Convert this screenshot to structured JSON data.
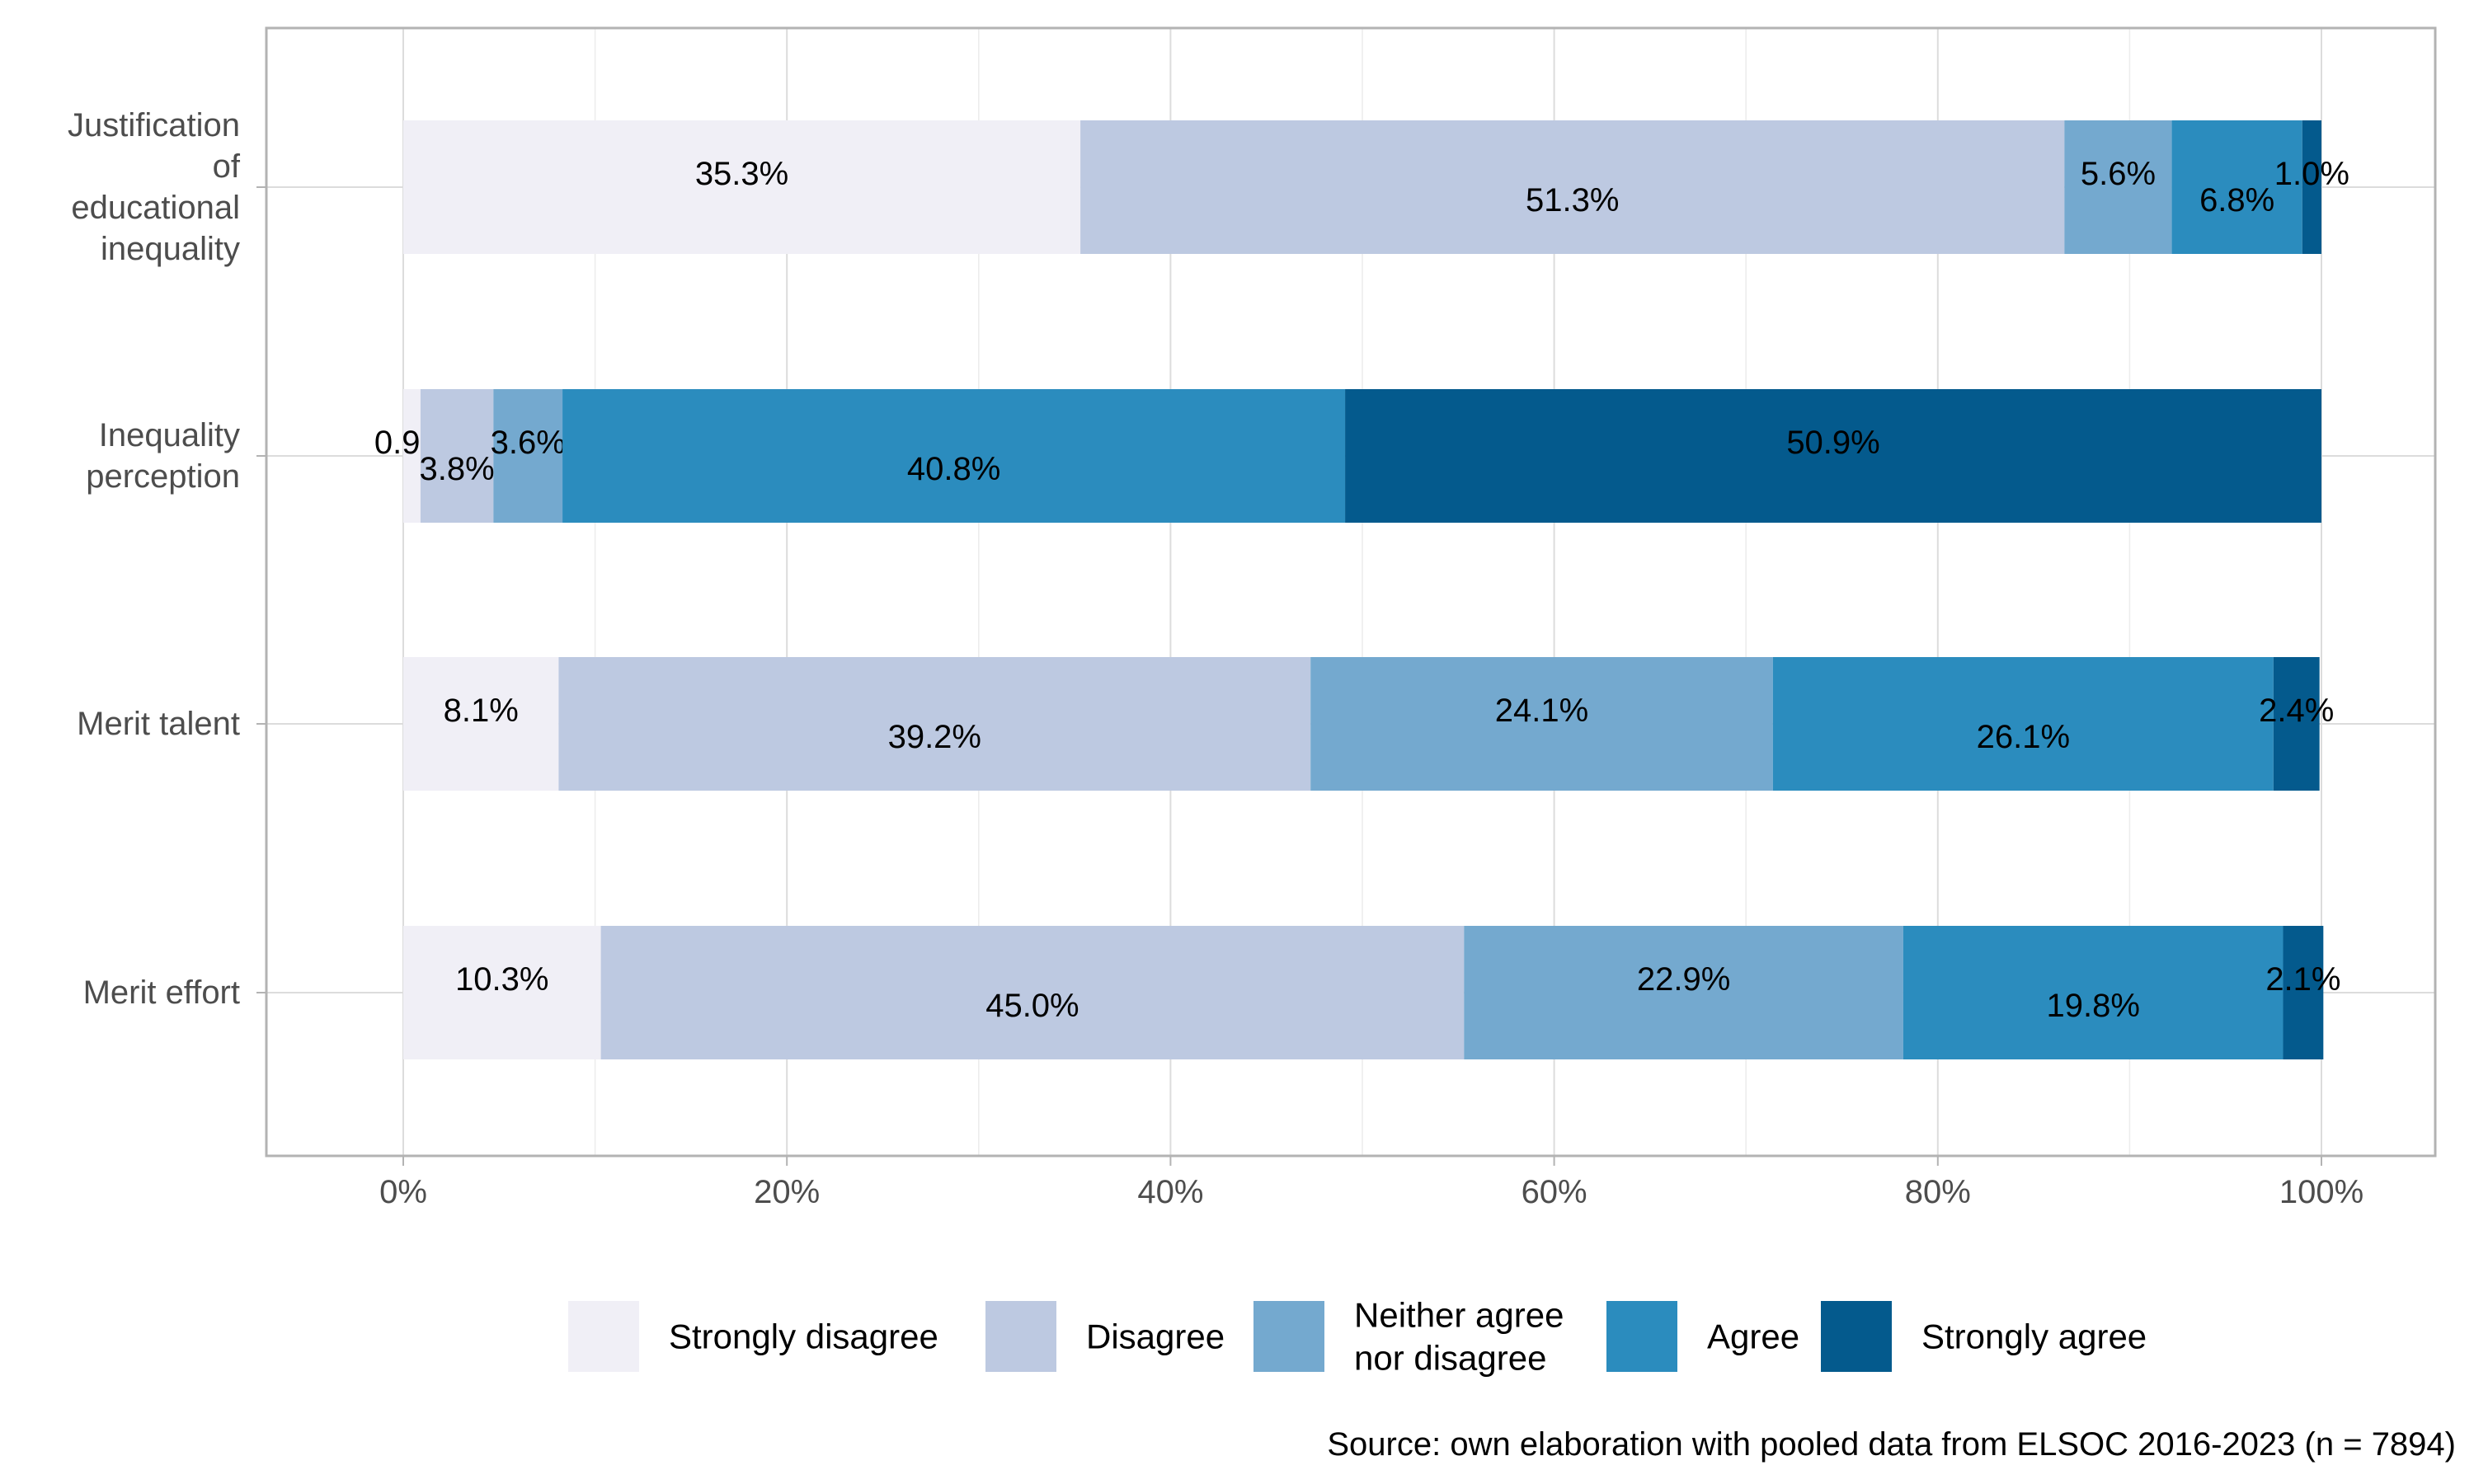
{
  "chart_data": {
    "type": "bar",
    "orientation": "horizontal",
    "stacked": true,
    "categories": [
      "Justification of educational inequality",
      "Inequality perception",
      "Merit talent",
      "Merit effort"
    ],
    "category_label_lines": [
      [
        "Justification",
        "of",
        "educational",
        "inequality"
      ],
      [
        "Inequality",
        "perception"
      ],
      [
        "Merit talent"
      ],
      [
        "Merit effort"
      ]
    ],
    "series": [
      {
        "name": "Strongly disagree",
        "color": "#f0eff6",
        "values": [
          35.3,
          0.9,
          8.1,
          10.3
        ]
      },
      {
        "name": "Disagree",
        "color": "#bdc9e1",
        "values": [
          51.3,
          3.8,
          39.2,
          45.0
        ]
      },
      {
        "name": "Neither agree nor disagree",
        "legend_lines": [
          "Neither agree",
          "nor disagree"
        ],
        "color": "#74a9cf",
        "values": [
          5.6,
          3.6,
          24.1,
          22.9
        ]
      },
      {
        "name": "Agree",
        "color": "#2b8cbe",
        "values": [
          6.8,
          40.8,
          26.1,
          19.8
        ]
      },
      {
        "name": "Strongly agree",
        "color": "#045a8d",
        "values": [
          1.0,
          50.9,
          2.4,
          2.1
        ]
      }
    ],
    "xlim": [
      0,
      100
    ],
    "x_ticks": [
      "0%",
      "20%",
      "40%",
      "60%",
      "80%",
      "100%"
    ],
    "x_tick_values": [
      0,
      20,
      40,
      60,
      80,
      100
    ],
    "grid": true,
    "legend_position": "bottom",
    "caption": "Source: own elaboration with pooled data from ELSOC 2016-2023 (n = 7894)",
    "xlabel": "",
    "ylabel": ""
  }
}
